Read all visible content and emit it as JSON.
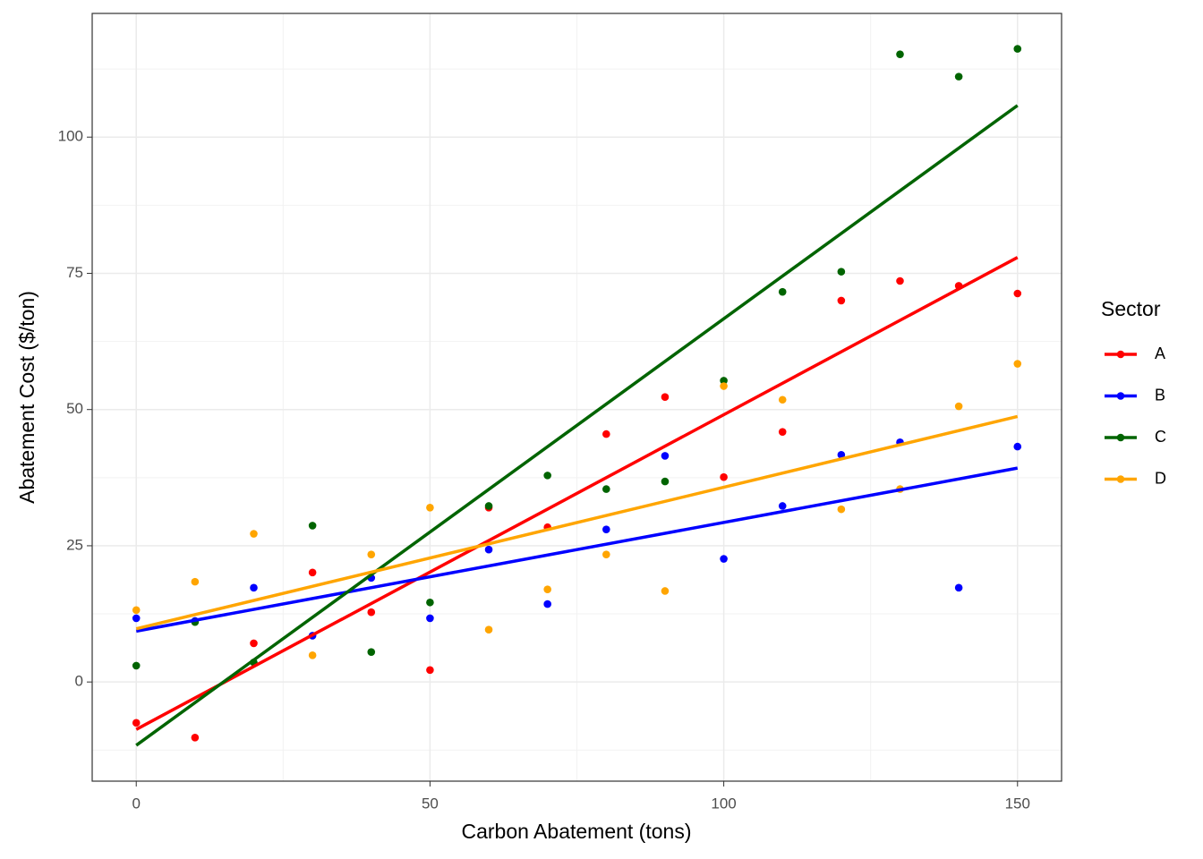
{
  "chart_data": {
    "type": "scatter",
    "x_label": "Carbon Abatement (tons)",
    "y_label": "Abatement Cost ($/ton)",
    "legend_title": "Sector",
    "legend_position": "right",
    "grid": true,
    "fit_lines": true,
    "x": [
      0,
      10,
      20,
      30,
      40,
      50,
      60,
      70,
      80,
      90,
      100,
      110,
      120,
      130,
      140,
      150
    ],
    "series": [
      {
        "name": "A",
        "color": "#ff0000",
        "values": [
          -7.5,
          -10.2,
          7.1,
          20.1,
          12.8,
          2.2,
          32,
          28.4,
          45.5,
          52.3,
          37.6,
          45.9,
          70,
          73.6,
          72.7,
          71.3
        ]
      },
      {
        "name": "B",
        "color": "#0000ff",
        "values": [
          11.7,
          11.2,
          17.3,
          8.5,
          19.1,
          11.7,
          24.3,
          14.3,
          28,
          41.5,
          22.6,
          32.3,
          41.7,
          44,
          17.3,
          43.2
        ]
      },
      {
        "name": "C",
        "color": "#006400",
        "values": [
          3,
          11,
          3.6,
          28.7,
          5.5,
          14.6,
          32.3,
          37.9,
          35.4,
          36.8,
          55.3,
          71.6,
          75.3,
          115.2,
          111.1,
          116.2
        ]
      },
      {
        "name": "D",
        "color": "#ffa500",
        "values": [
          13.2,
          18.4,
          27.2,
          4.9,
          23.4,
          32,
          9.6,
          17,
          23.4,
          16.7,
          54.3,
          51.8,
          31.7,
          35.4,
          50.6,
          58.4
        ]
      }
    ],
    "xlim": [
      -7.5,
      157.5
    ],
    "xticks": [
      0,
      50,
      100,
      150
    ],
    "ylim": [
      -18.2,
      122.7
    ],
    "yticks": [
      0,
      25,
      50,
      75,
      100
    ]
  }
}
